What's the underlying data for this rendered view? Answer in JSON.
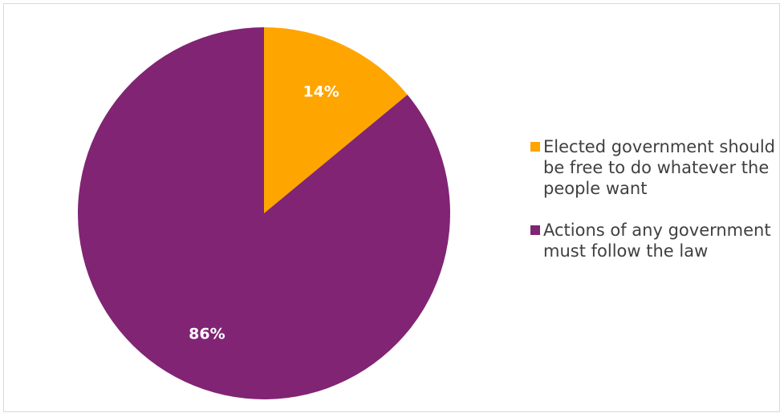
{
  "chart_data": {
    "type": "pie",
    "title": "",
    "series": [
      {
        "name": "Elected government should be free to do whatever the people want",
        "value": 14,
        "label": "14%",
        "color": "#ffa500"
      },
      {
        "name": "Actions of any government must follow the law",
        "value": 86,
        "label": "86%",
        "color": "#812474"
      }
    ],
    "legend_position": "right"
  }
}
